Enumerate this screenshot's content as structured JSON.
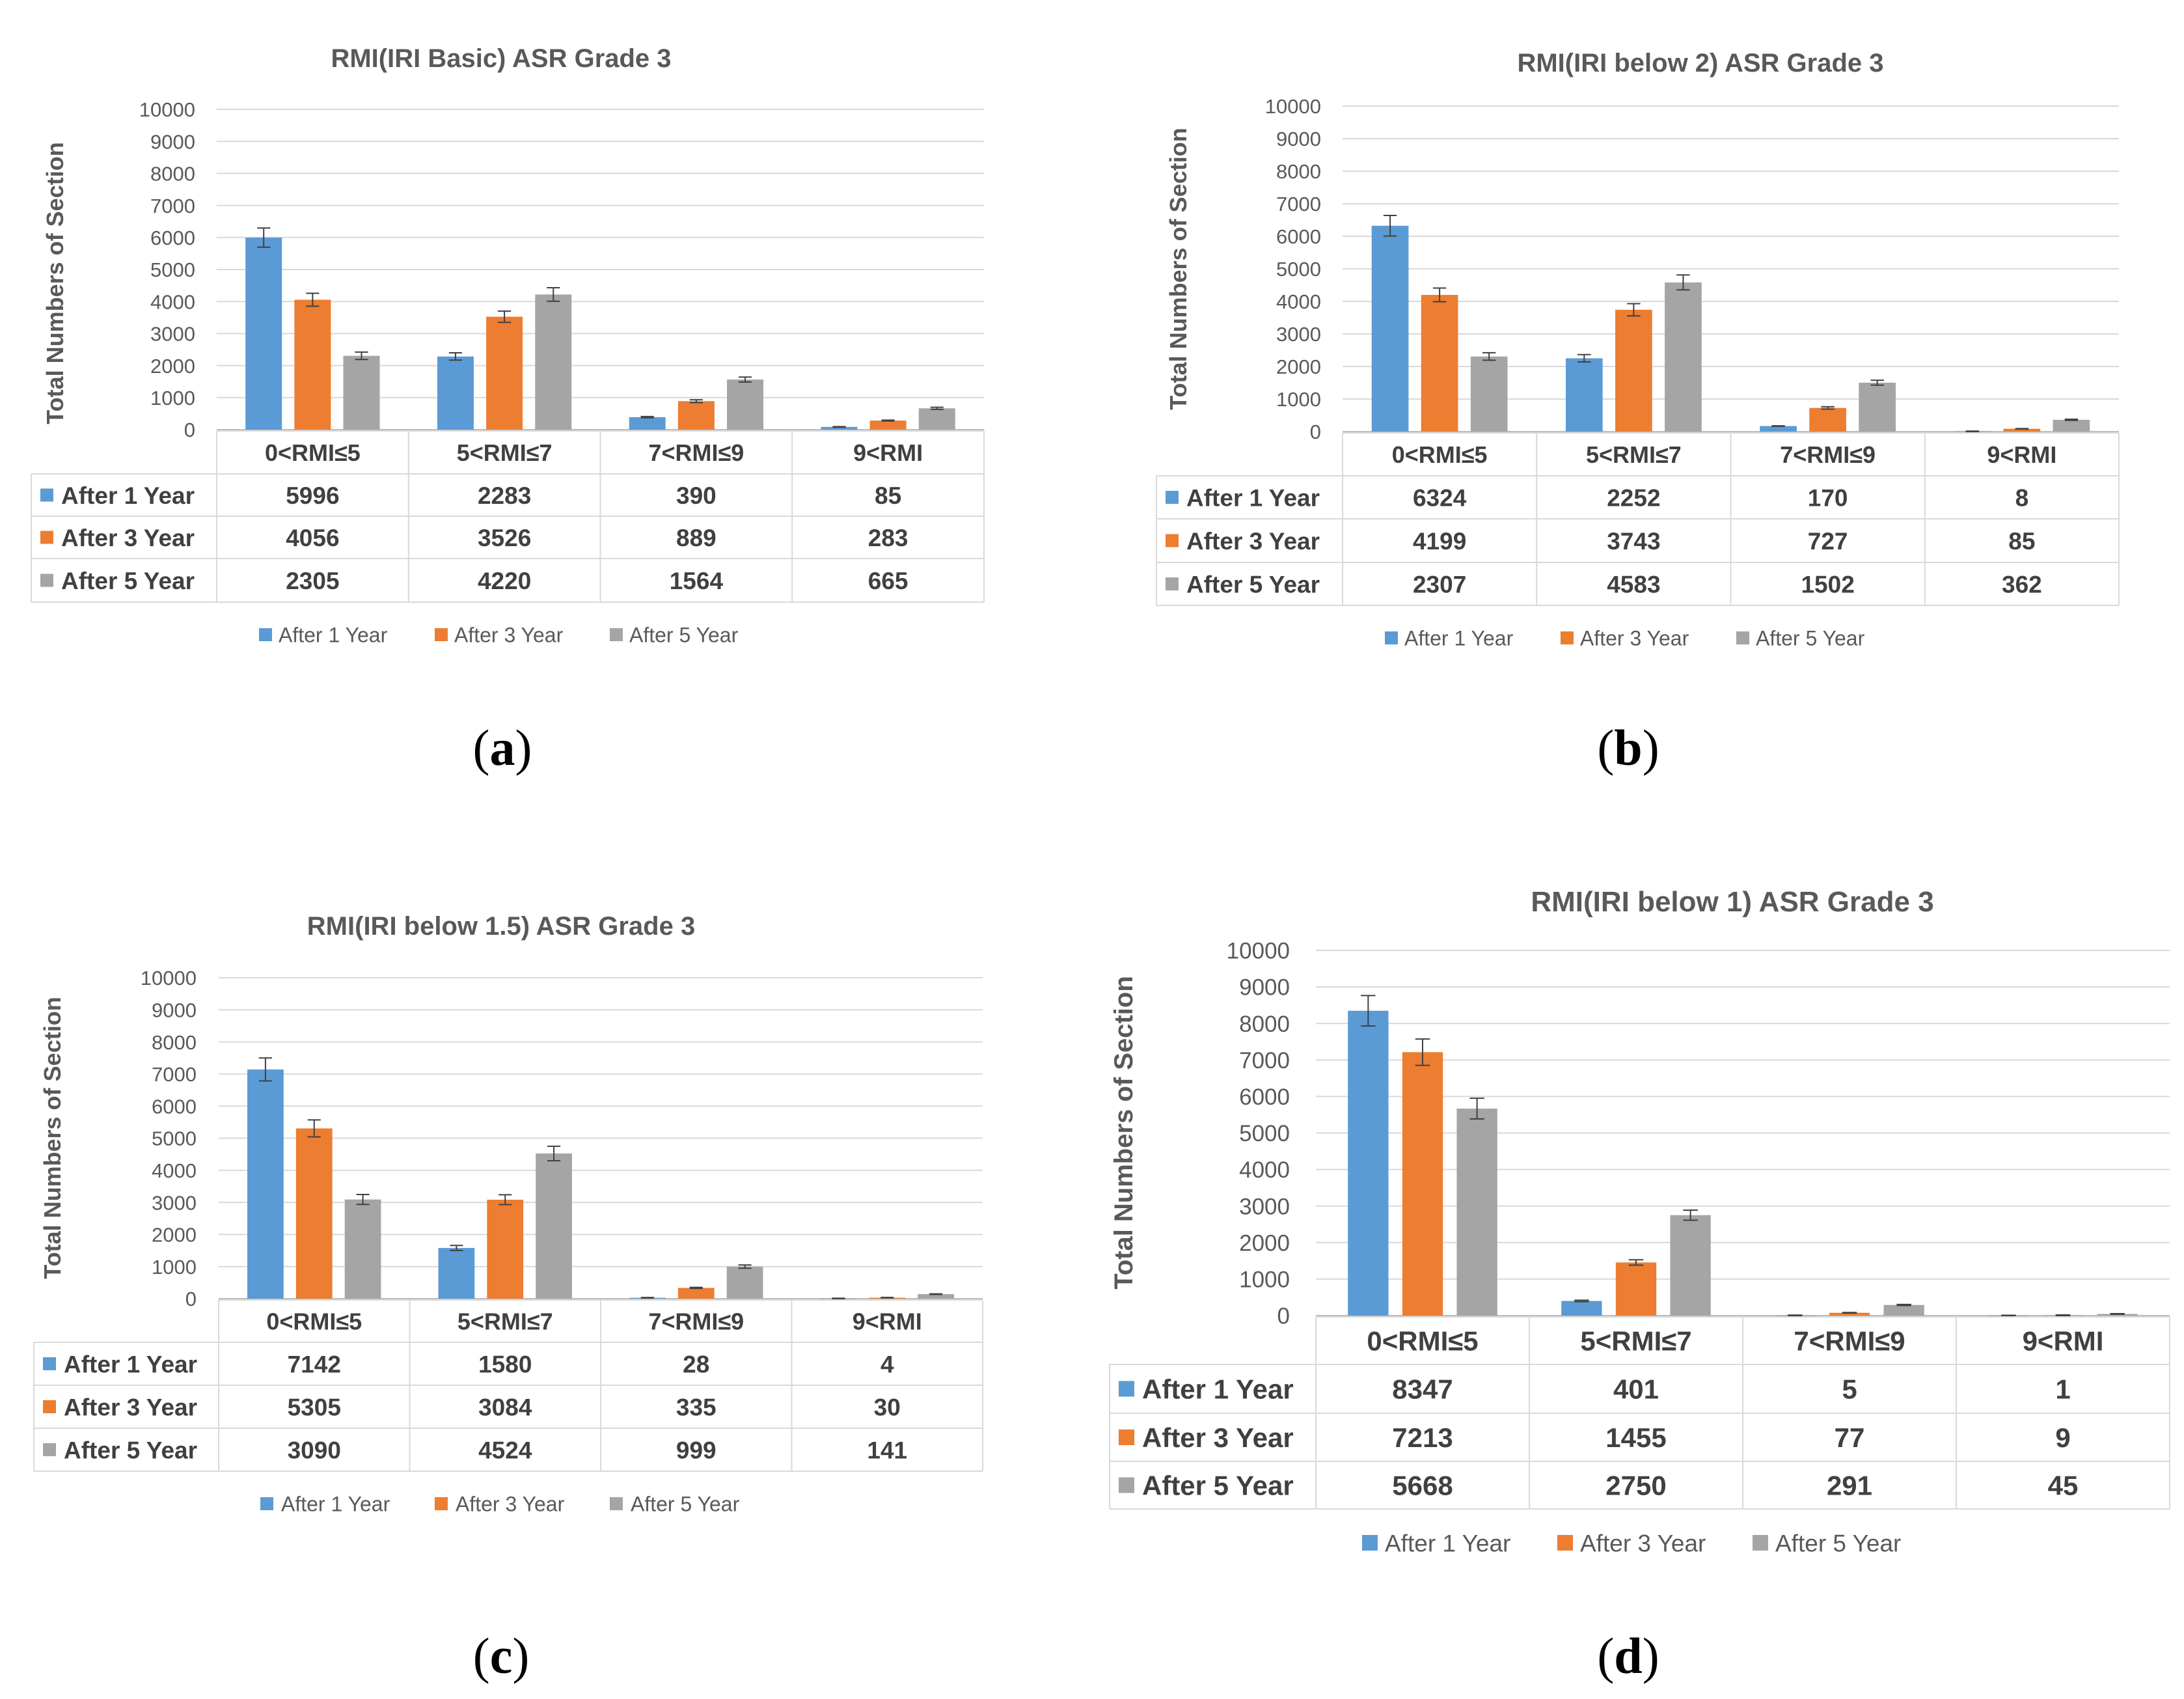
{
  "colors": {
    "after1": "#5B9BD5",
    "after3": "#ED7D31",
    "after5": "#A5A5A5"
  },
  "chart_data": [
    {
      "type": "bar",
      "panel_label": "(a)",
      "title": "RMI(IRI Basic) ASR Grade 3",
      "ylabel": "Total Numbers of Section",
      "ylim": [
        0,
        10000
      ],
      "yticks": [
        0,
        1000,
        2000,
        3000,
        4000,
        5000,
        6000,
        7000,
        8000,
        9000,
        10000
      ],
      "categories": [
        "0<RMI≤5",
        "5<RMI≤7",
        "7<RMI≤9",
        "9<RMI"
      ],
      "series": [
        {
          "name": "After 1 Year",
          "values": [
            5996,
            2283,
            390,
            85
          ]
        },
        {
          "name": "After 3 Year",
          "values": [
            4056,
            3526,
            889,
            283
          ]
        },
        {
          "name": "After 5 Year",
          "values": [
            2305,
            4220,
            1564,
            665
          ]
        }
      ],
      "error_bars": true,
      "legend": "bottom"
    },
    {
      "type": "bar",
      "panel_label": "(b)",
      "title": "RMI(IRI below 2) ASR Grade 3",
      "ylabel": "Total Numbers of Section",
      "ylim": [
        0,
        10000
      ],
      "yticks": [
        0,
        1000,
        2000,
        3000,
        4000,
        5000,
        6000,
        7000,
        8000,
        9000,
        10000
      ],
      "categories": [
        "0<RMI≤5",
        "5<RMI≤7",
        "7<RMI≤9",
        "9<RMI"
      ],
      "series": [
        {
          "name": "After 1 Year",
          "values": [
            6324,
            2252,
            170,
            8
          ]
        },
        {
          "name": "After 3 Year",
          "values": [
            4199,
            3743,
            727,
            85
          ]
        },
        {
          "name": "After 5 Year",
          "values": [
            2307,
            4583,
            1502,
            362
          ]
        }
      ],
      "error_bars": true,
      "legend": "bottom"
    },
    {
      "type": "bar",
      "panel_label": "(c)",
      "title": "RMI(IRI below 1.5) ASR Grade 3",
      "ylabel": "Total Numbers of Section",
      "ylim": [
        0,
        10000
      ],
      "yticks": [
        0,
        1000,
        2000,
        3000,
        4000,
        5000,
        6000,
        7000,
        8000,
        9000,
        10000
      ],
      "categories": [
        "0<RMI≤5",
        "5<RMI≤7",
        "7<RMI≤9",
        "9<RMI"
      ],
      "series": [
        {
          "name": "After 1 Year",
          "values": [
            7142,
            1580,
            28,
            4
          ]
        },
        {
          "name": "After 3 Year",
          "values": [
            5305,
            3084,
            335,
            30
          ]
        },
        {
          "name": "After 5 Year",
          "values": [
            3090,
            4524,
            999,
            141
          ]
        }
      ],
      "error_bars": true,
      "legend": "bottom"
    },
    {
      "type": "bar",
      "panel_label": "(d)",
      "title": "RMI(IRI below 1) ASR Grade 3",
      "ylabel": "Total Numbers of Section",
      "ylim": [
        0,
        10000
      ],
      "yticks": [
        0,
        1000,
        2000,
        3000,
        4000,
        5000,
        6000,
        7000,
        8000,
        9000,
        10000
      ],
      "categories": [
        "0<RMI≤5",
        "5<RMI≤7",
        "7<RMI≤9",
        "9<RMI"
      ],
      "series": [
        {
          "name": "After 1 Year",
          "values": [
            8347,
            401,
            5,
            1
          ]
        },
        {
          "name": "After 3 Year",
          "values": [
            7213,
            1455,
            77,
            9
          ]
        },
        {
          "name": "After 5 Year",
          "values": [
            5668,
            2750,
            291,
            45
          ]
        }
      ],
      "error_bars": true,
      "legend": "bottom"
    }
  ]
}
